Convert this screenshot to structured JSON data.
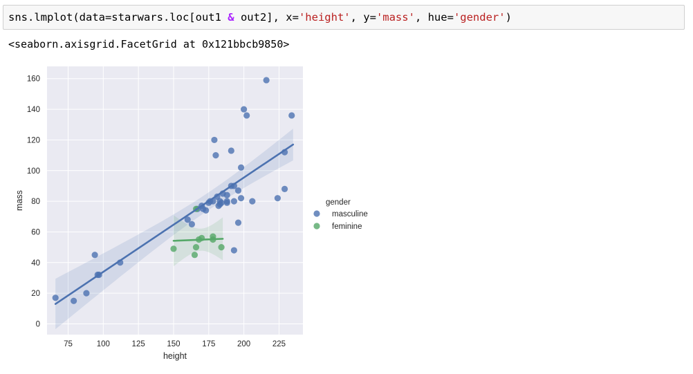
{
  "cell": {
    "code": {
      "fn": "sns.lmplot(data=starwars.loc[out1 ",
      "op": "&",
      "mid": " out2], x=",
      "x_str": "'height'",
      "sep1": ", y=",
      "y_str": "'mass'",
      "sep2": ", hue=",
      "hue_str": "'gender'",
      "end": ")"
    },
    "output": "<seaborn.axisgrid.FacetGrid at 0x121bbcb9850>"
  },
  "chart_data": {
    "type": "scatter",
    "xlabel": "height",
    "ylabel": "mass",
    "xlim": [
      60,
      242
    ],
    "ylim": [
      -7,
      168
    ],
    "xticks": [
      75,
      100,
      125,
      150,
      175,
      200,
      225
    ],
    "yticks": [
      0,
      20,
      40,
      60,
      80,
      100,
      120,
      140,
      160
    ],
    "grid": true,
    "legend": {
      "title": "gender",
      "placement": "right"
    },
    "series": [
      {
        "name": "masculine",
        "color": "#4c72b0",
        "points": [
          [
            66,
            17
          ],
          [
            79,
            15
          ],
          [
            88,
            20
          ],
          [
            94,
            45
          ],
          [
            96,
            32
          ],
          [
            97,
            32
          ],
          [
            112,
            40
          ],
          [
            160,
            68
          ],
          [
            163,
            65
          ],
          [
            167,
            75
          ],
          [
            170,
            77
          ],
          [
            171,
            75
          ],
          [
            173,
            74
          ],
          [
            175,
            79
          ],
          [
            176,
            80
          ],
          [
            178,
            80
          ],
          [
            180,
            110
          ],
          [
            179,
            120
          ],
          [
            181,
            83
          ],
          [
            182,
            77
          ],
          [
            183,
            78
          ],
          [
            183,
            80
          ],
          [
            184,
            79
          ],
          [
            185,
            85
          ],
          [
            188,
            84
          ],
          [
            188,
            80
          ],
          [
            188,
            79
          ],
          [
            191,
            113
          ],
          [
            191,
            90
          ],
          [
            193,
            90
          ],
          [
            193,
            48
          ],
          [
            193,
            80
          ],
          [
            196,
            66
          ],
          [
            196,
            87
          ],
          [
            198,
            82
          ],
          [
            198,
            102
          ],
          [
            200,
            140
          ],
          [
            202,
            136
          ],
          [
            206,
            80
          ],
          [
            216,
            159
          ],
          [
            224,
            82
          ],
          [
            229,
            112
          ],
          [
            229,
            88
          ],
          [
            234,
            136
          ]
        ],
        "regression": {
          "x": [
            66,
            235
          ],
          "y": [
            13,
            117
          ]
        }
      },
      {
        "name": "feminine",
        "color": "#55a868",
        "points": [
          [
            150,
            49
          ],
          [
            165,
            45
          ],
          [
            166,
            50
          ],
          [
            166,
            75
          ],
          [
            168,
            55
          ],
          [
            170,
            56
          ],
          [
            178,
            55
          ],
          [
            178,
            57
          ],
          [
            184,
            50
          ]
        ],
        "regression": {
          "x": [
            150,
            185
          ],
          "y": [
            54.2,
            55.5
          ]
        }
      }
    ]
  }
}
